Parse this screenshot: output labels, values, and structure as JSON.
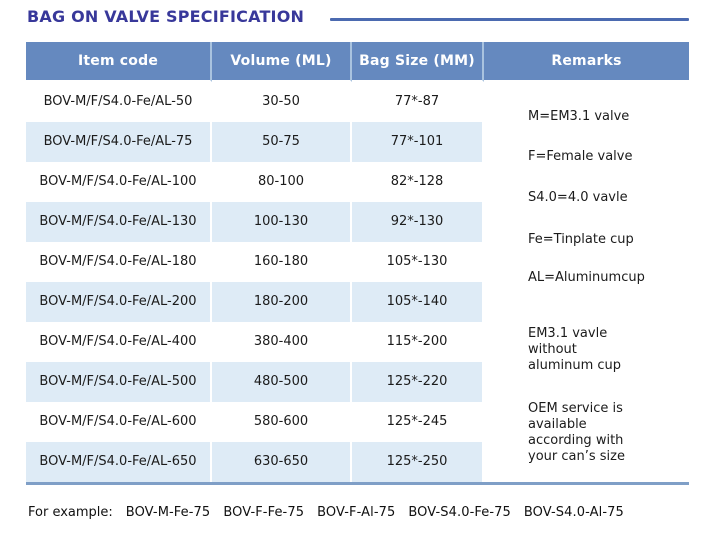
{
  "title": "BAG ON VALVE SPECIFICATION",
  "colors": {
    "header_bg": "#6589bf",
    "header_text": "#ffffff",
    "stripe": "#deebf6",
    "title_text": "#38389a",
    "title_rule": "#4b6ab0",
    "table_bottom_border": "#7f9fc7",
    "body_text": "#1b1b1b"
  },
  "table": {
    "headers": [
      "Item code",
      "Volume (ML)",
      "Bag Size (MM)",
      "Remarks"
    ],
    "rows": [
      {
        "item_code": "BOV-M/F/S4.0-Fe/AL-50",
        "volume": "30-50",
        "bag_size": "77*-87"
      },
      {
        "item_code": "BOV-M/F/S4.0-Fe/AL-75",
        "volume": "50-75",
        "bag_size": "77*-101"
      },
      {
        "item_code": "BOV-M/F/S4.0-Fe/AL-100",
        "volume": "80-100",
        "bag_size": "82*-128"
      },
      {
        "item_code": "BOV-M/F/S4.0-Fe/AL-130",
        "volume": "100-130",
        "bag_size": "92*-130"
      },
      {
        "item_code": "BOV-M/F/S4.0-Fe/AL-180",
        "volume": "160-180",
        "bag_size": "105*-130"
      },
      {
        "item_code": "BOV-M/F/S4.0-Fe/AL-200",
        "volume": "180-200",
        "bag_size": "105*-140"
      },
      {
        "item_code": "BOV-M/F/S4.0-Fe/AL-400",
        "volume": "380-400",
        "bag_size": "115*-200"
      },
      {
        "item_code": "BOV-M/F/S4.0-Fe/AL-500",
        "volume": "480-500",
        "bag_size": "125*-220"
      },
      {
        "item_code": "BOV-M/F/S4.0-Fe/AL-600",
        "volume": "580-600",
        "bag_size": "125*-245"
      },
      {
        "item_code": "BOV-M/F/S4.0-Fe/AL-650",
        "volume": "630-650",
        "bag_size": "125*-250"
      }
    ],
    "remarks": [
      "M=EM3.1 valve",
      "F=Female valve",
      "S4.0=4.0 vavle",
      "Fe=Tinplate cup",
      "AL=Aluminumcup",
      "EM3.1 vavle\nwithout\naluminum cup",
      "OEM service is\navailable\naccording with\nyour can’s size"
    ]
  },
  "footer": {
    "label": "For example:",
    "examples": [
      "BOV-M-Fe-75",
      "BOV-F-Fe-75",
      "BOV-F-Al-75",
      "BOV-S4.0-Fe-75",
      "BOV-S4.0-Al-75"
    ]
  }
}
